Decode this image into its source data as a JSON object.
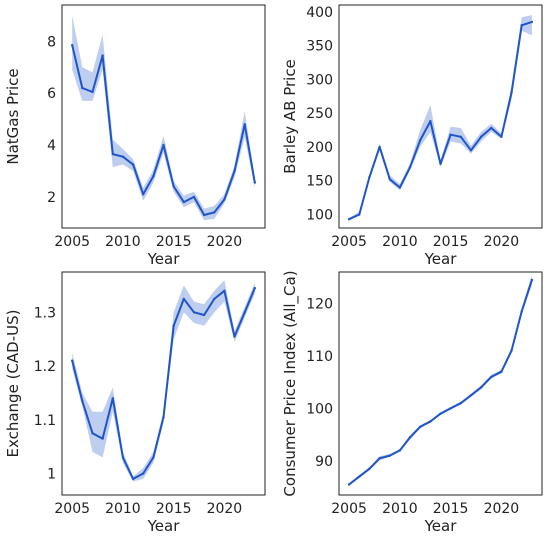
{
  "colors": {
    "line": "#1f55c9",
    "band": "#a8bde8",
    "frame": "#222222",
    "background": "#ffffff"
  },
  "chart_data": [
    {
      "type": "line",
      "xlabel": "Year",
      "ylabel": "NatGas Price",
      "xlim": [
        2004,
        2024
      ],
      "ylim": [
        0.8,
        9.4
      ],
      "xticks": [
        2005,
        2010,
        2015,
        2020
      ],
      "yticks": [
        2,
        4,
        6,
        8
      ],
      "x": [
        2005,
        2006,
        2007,
        2008,
        2009,
        2010,
        2011,
        2012,
        2013,
        2014,
        2015,
        2016,
        2017,
        2018,
        2019,
        2020,
        2021,
        2022,
        2023
      ],
      "y": [
        7.85,
        6.2,
        6.05,
        7.45,
        3.65,
        3.55,
        3.25,
        2.1,
        2.8,
        4.0,
        2.4,
        1.8,
        2.0,
        1.3,
        1.4,
        1.9,
        3.0,
        4.8,
        2.55
      ],
      "band_low": [
        6.9,
        5.7,
        5.7,
        6.9,
        3.15,
        3.25,
        3.0,
        1.85,
        2.55,
        3.7,
        2.2,
        1.6,
        1.8,
        1.1,
        1.15,
        1.75,
        2.75,
        4.3,
        2.35
      ],
      "band_high": [
        9.0,
        7.0,
        6.8,
        8.25,
        4.2,
        3.85,
        3.45,
        2.35,
        3.05,
        4.35,
        2.6,
        2.05,
        2.2,
        1.55,
        1.65,
        2.1,
        3.2,
        5.3,
        2.75
      ],
      "grid": false
    },
    {
      "type": "line",
      "xlabel": "Year",
      "ylabel": "Barley AB Price",
      "xlim": [
        2004,
        2024
      ],
      "ylim": [
        80,
        410
      ],
      "xticks": [
        2005,
        2010,
        2015,
        2020
      ],
      "yticks": [
        100,
        150,
        200,
        250,
        300,
        350,
        400
      ],
      "x": [
        2005,
        2006,
        2007,
        2008,
        2009,
        2010,
        2011,
        2012,
        2013,
        2014,
        2015,
        2016,
        2017,
        2018,
        2019,
        2020,
        2021,
        2022,
        2023
      ],
      "y": [
        93,
        100,
        155,
        200,
        152,
        140,
        170,
        210,
        238,
        175,
        218,
        215,
        195,
        215,
        228,
        215,
        280,
        380,
        385
      ],
      "band_low": [
        92,
        98,
        152,
        196,
        148,
        136,
        166,
        200,
        222,
        170,
        208,
        205,
        190,
        208,
        222,
        212,
        270,
        372,
        365
      ],
      "band_high": [
        95,
        104,
        158,
        205,
        158,
        145,
        176,
        225,
        262,
        180,
        230,
        228,
        202,
        222,
        234,
        220,
        290,
        392,
        395
      ],
      "grid": false
    },
    {
      "type": "line",
      "xlabel": "Year",
      "ylabel": "Exchange (CAD-US)",
      "xlim": [
        2004,
        2024
      ],
      "ylim": [
        0.96,
        1.375
      ],
      "xticks": [
        2005,
        2010,
        2015,
        2020
      ],
      "yticks": [
        1.0,
        1.1,
        1.2,
        1.3
      ],
      "x": [
        2005,
        2006,
        2007,
        2008,
        2009,
        2010,
        2011,
        2012,
        2013,
        2014,
        2015,
        2016,
        2017,
        2018,
        2019,
        2020,
        2021,
        2022,
        2023
      ],
      "y": [
        1.21,
        1.135,
        1.075,
        1.065,
        1.14,
        1.03,
        0.99,
        1.0,
        1.03,
        1.105,
        1.275,
        1.325,
        1.3,
        1.295,
        1.325,
        1.34,
        1.255,
        1.3,
        1.345
      ],
      "band_low": [
        1.195,
        1.125,
        1.04,
        1.03,
        1.115,
        1.02,
        0.985,
        0.99,
        1.02,
        1.095,
        1.25,
        1.3,
        1.28,
        1.275,
        1.3,
        1.32,
        1.245,
        1.29,
        1.335
      ],
      "band_high": [
        1.225,
        1.15,
        1.115,
        1.115,
        1.16,
        1.04,
        0.995,
        1.01,
        1.04,
        1.115,
        1.3,
        1.35,
        1.32,
        1.315,
        1.34,
        1.36,
        1.265,
        1.31,
        1.355
      ],
      "grid": false
    },
    {
      "type": "line",
      "xlabel": "Year",
      "ylabel": "Consumer Price Index (All_Ca)",
      "xlim": [
        2004,
        2024
      ],
      "ylim": [
        83.5,
        126
      ],
      "xticks": [
        2005,
        2010,
        2015,
        2020
      ],
      "yticks": [
        90,
        100,
        110,
        120
      ],
      "x": [
        2005,
        2006,
        2007,
        2008,
        2009,
        2010,
        2011,
        2012,
        2013,
        2014,
        2015,
        2016,
        2017,
        2018,
        2019,
        2020,
        2021,
        2022,
        2023
      ],
      "y": [
        85.5,
        87,
        88.5,
        90.5,
        91,
        92,
        94.5,
        96.5,
        97.5,
        99,
        100,
        101,
        102.5,
        104,
        106,
        107,
        111,
        118.5,
        124.5
      ],
      "band_low": [
        85.3,
        86.8,
        88.2,
        90.1,
        90.8,
        91.8,
        94.1,
        96.2,
        97.3,
        98.8,
        99.8,
        100.8,
        102.2,
        103.7,
        105.7,
        106.7,
        110.6,
        117.9,
        123.6
      ],
      "band_high": [
        85.8,
        87.3,
        88.8,
        90.9,
        91.3,
        92.3,
        94.9,
        96.8,
        97.8,
        99.3,
        100.3,
        101.3,
        102.8,
        104.4,
        106.4,
        107.4,
        111.5,
        119.2,
        125.4
      ],
      "grid": false
    }
  ]
}
